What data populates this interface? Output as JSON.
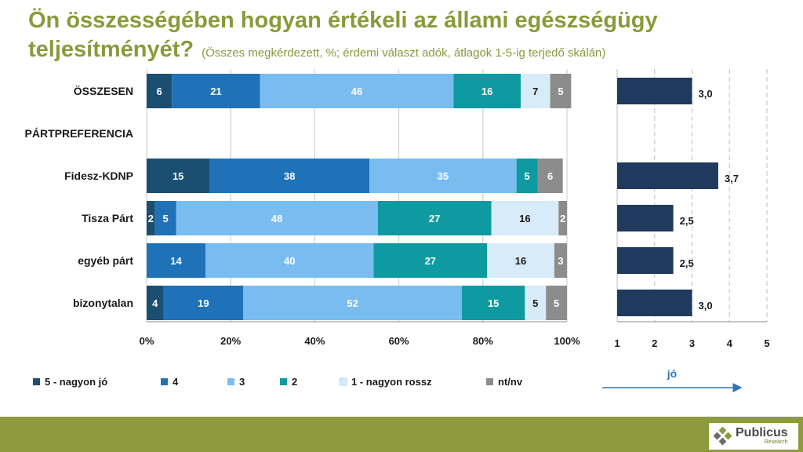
{
  "title": {
    "main": "Ön összességében hogyan értékeli az állami egészségügy teljesítményét?",
    "subtitle": "(Összes megkérdezett, %; érdemi választ adók, átlagok 1-5-ig terjedő skálán)"
  },
  "chart_data": [
    {
      "type": "bar",
      "orientation": "horizontal",
      "stacked": true,
      "categories": [
        "ÖSSZESEN",
        "PÁRTPREFERENCIA",
        "Fidesz-KDNP",
        "Tisza Párt",
        "egyéb párt",
        "bizonytalan"
      ],
      "series": [
        {
          "name": "5 - nagyon jó",
          "color": "#1b4f72",
          "label_color": "#ffffff",
          "values": [
            6,
            null,
            15,
            2,
            null,
            4
          ]
        },
        {
          "name": "4",
          "color": "#1f72b8",
          "label_color": "#ffffff",
          "values": [
            21,
            null,
            38,
            5,
            14,
            19
          ]
        },
        {
          "name": "3",
          "color": "#79bdf0",
          "label_color": "#ffffff",
          "values": [
            46,
            null,
            35,
            48,
            40,
            52
          ]
        },
        {
          "name": "2",
          "color": "#0e9aa0",
          "label_color": "#ffffff",
          "values": [
            16,
            null,
            5,
            27,
            27,
            15
          ]
        },
        {
          "name": "1 - nagyon rossz",
          "color": "#d8ebf9",
          "label_color": "#1a1a1a",
          "values": [
            7,
            null,
            null,
            16,
            16,
            5
          ]
        },
        {
          "name": "nt/nv",
          "color": "#8c8c8c",
          "label_color": "#ffffff",
          "values": [
            5,
            null,
            6,
            2,
            3,
            5
          ]
        }
      ],
      "xlim": [
        0,
        100
      ],
      "xticks": [
        "0%",
        "20%",
        "40%",
        "60%",
        "80%",
        "100%"
      ],
      "grid": true,
      "legend": "bottom"
    },
    {
      "type": "bar",
      "orientation": "horizontal",
      "categories": [
        "ÖSSZESEN",
        "PÁRTPREFERENCIA",
        "Fidesz-KDNP",
        "Tisza Párt",
        "egyéb párt",
        "bizonytalan"
      ],
      "values": [
        3.0,
        null,
        3.7,
        2.5,
        2.5,
        3.0
      ],
      "value_labels": [
        "3,0",
        "",
        "3,7",
        "2,5",
        "2,5",
        "3,0"
      ],
      "color": "#1f3a5c",
      "xlim": [
        1,
        5
      ],
      "xticks": [
        "1",
        "2",
        "3",
        "4",
        "5"
      ],
      "grid": "dashed",
      "arrow_label": "jó"
    }
  ],
  "brand": {
    "name": "Publicus",
    "sub": "Research"
  }
}
